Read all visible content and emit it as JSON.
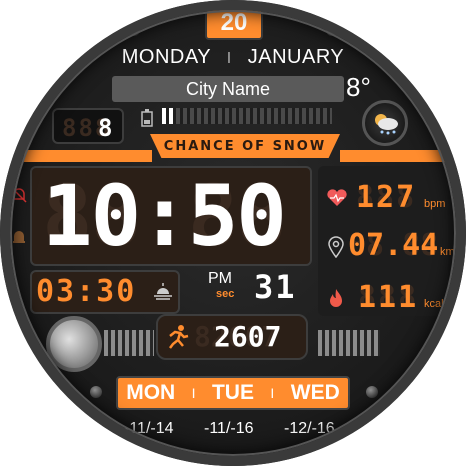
{
  "date": {
    "day": "20",
    "weekday": "MONDAY",
    "separator": "I",
    "month": "JANUARY"
  },
  "weather": {
    "city": "City Name",
    "temperature": "8°",
    "condition": "CHANCE OF SNOW"
  },
  "battery": {
    "level_display": "8",
    "level_ghost": "888",
    "fill_fraction": 0.08
  },
  "time": {
    "main": "10:50",
    "ghost": "88:88",
    "ampm": "PM",
    "sec_label": "sec",
    "seconds": "31"
  },
  "sunrise": {
    "time": "03:30"
  },
  "stats": {
    "heart": {
      "value": "127",
      "ghost": "888",
      "unit": "bpm"
    },
    "distance": {
      "value": "07.44",
      "ghost": "88.88",
      "unit": "km"
    },
    "calories": {
      "value": "111",
      "ghost": "888",
      "unit": "kcal"
    }
  },
  "steps": {
    "value": "2607",
    "ghost": "82607"
  },
  "forecast": [
    {
      "day": "MON",
      "temp": "-11/-14"
    },
    {
      "day": "TUE",
      "temp": "-11/-16"
    },
    {
      "day": "WED",
      "temp": "-12/-16"
    }
  ],
  "forecast_separator": "I",
  "colors": {
    "accent": "#ff8c2e",
    "panel": "#2b1f17",
    "text": "#ffffff",
    "ghost": "#3a2a20"
  },
  "icons": {
    "notification": "muted-bell-icon",
    "alarm": "bell-icon",
    "battery": "battery-icon",
    "weather": "partly-cloudy-snow-icon",
    "sunrise": "sunrise-icon",
    "heart": "heart-icon",
    "distance": "location-pin-icon",
    "calories": "flame-icon",
    "steps": "running-person-icon",
    "moon": "moon-phase-icon"
  }
}
